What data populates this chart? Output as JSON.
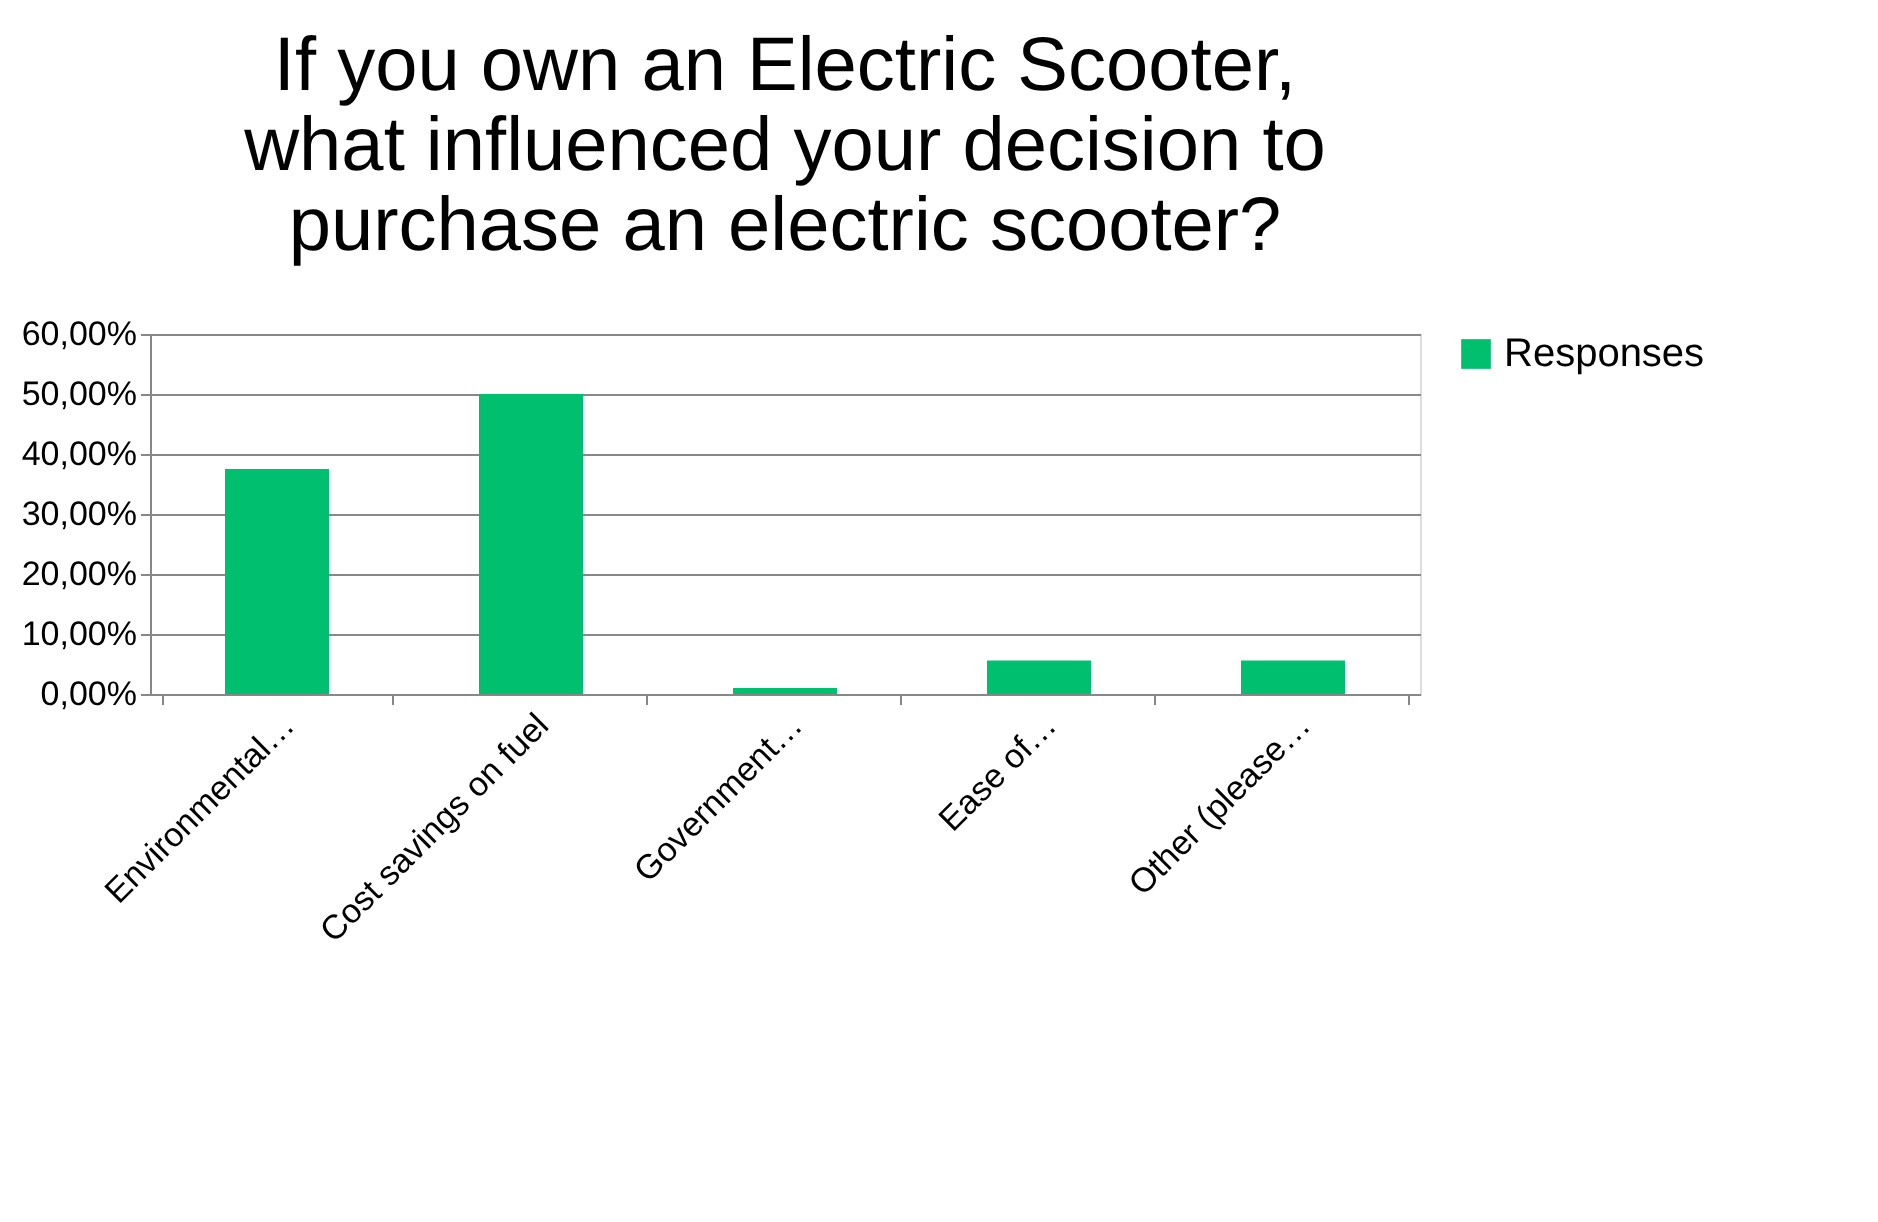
{
  "chart_data": {
    "type": "bar",
    "title": [
      "If you own an Electric Scooter,",
      "what influenced your decision to",
      "purchase an electric scooter?"
    ],
    "categories": [
      "Environmental…",
      "Cost savings on fuel",
      "Government…",
      "Ease of…",
      "Other (please…"
    ],
    "series": [
      {
        "name": "Responses",
        "color": "#00bf6f",
        "values": [
          37.5,
          50,
          1,
          5.6,
          5.6
        ]
      }
    ],
    "ylim": [
      0,
      60
    ],
    "yticks": [
      {
        "value": 0,
        "label": "0,00%"
      },
      {
        "value": 10,
        "label": "10,00%"
      },
      {
        "value": 20,
        "label": "20,00%"
      },
      {
        "value": 30,
        "label": "30,00%"
      },
      {
        "value": 40,
        "label": "40,00%"
      },
      {
        "value": 50,
        "label": "50,00%"
      },
      {
        "value": 60,
        "label": "60,00%"
      }
    ],
    "grid": "y",
    "legend": "right"
  }
}
